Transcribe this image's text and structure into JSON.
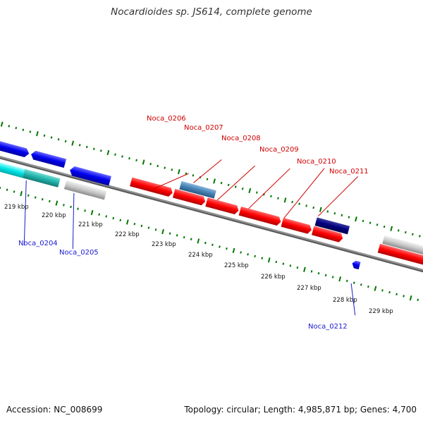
{
  "title": "Nocardioides sp. JS614, complete genome",
  "accession_text": "Accession: NC_008699",
  "summary_text": "Topology: circular; Length: 4,985,871 bp; Genes: 4,700",
  "colors": {
    "forward_gene": "#ff0000",
    "reverse_gene": "#0000ee",
    "dark_navy_gene": "#000080",
    "steel_blue_gene": "#4682b4",
    "cyan_gene": "#00e5e5",
    "teal_gene": "#20b2aa",
    "gray_gene": "#c8c8c8",
    "backbone": "#808080",
    "tick_marks": "#007700"
  },
  "scale_ticks": [
    "219 kbp",
    "220 kbp",
    "221 kbp",
    "222 kbp",
    "223 kbp",
    "224 kbp",
    "225 kbp",
    "226 kbp",
    "227 kbp",
    "228 kbp",
    "229 kbp"
  ],
  "gene_labels": {
    "noca_0204": "Noca_0204",
    "noca_0205": "Noca_0205",
    "noca_0206": "Noca_0206",
    "noca_0207": "Noca_0207",
    "noca_0208": "Noca_0208",
    "noca_0209": "Noca_0209",
    "noca_0210": "Noca_0210",
    "noca_0211": "Noca_0211",
    "noca_0212": "Noca_0212"
  }
}
